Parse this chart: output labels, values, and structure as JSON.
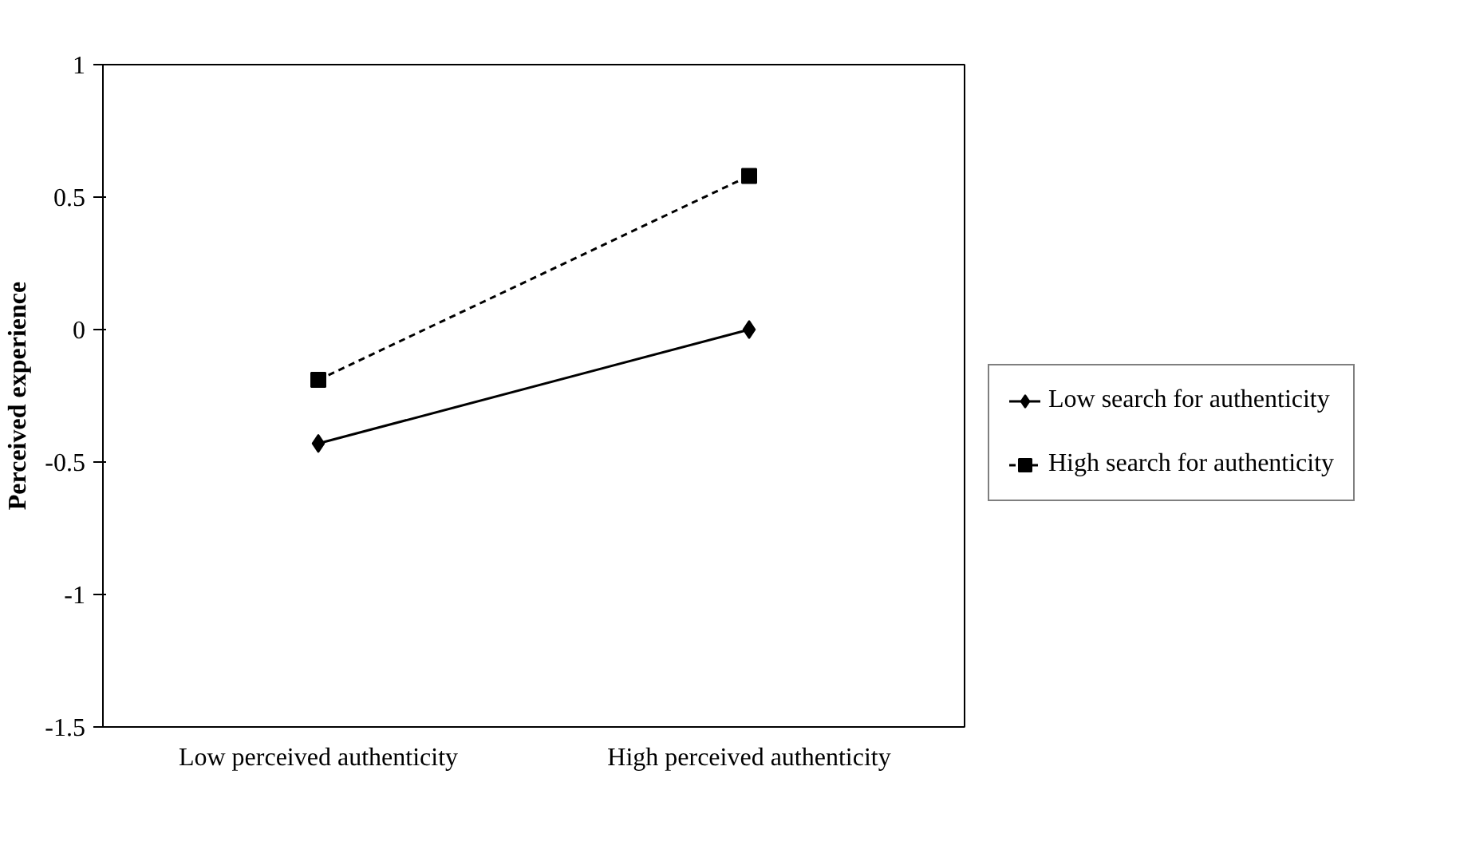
{
  "chart_data": {
    "type": "line",
    "ylabel": "Perceived experience",
    "categories": [
      "Low perceived authenticity",
      "High perceived authenticity"
    ],
    "series": [
      {
        "name": "Low search for authenticity",
        "color": "#000000",
        "values": [
          -0.43,
          0.0
        ],
        "marker": "diamond",
        "line_style": "solid"
      },
      {
        "name": "High search for authenticity",
        "color": "#000000",
        "values": [
          -0.19,
          0.58
        ],
        "marker": "square",
        "line_style": "dashed"
      }
    ],
    "ylim": [
      -1.5,
      1
    ],
    "yticks": [
      -1.5,
      -1,
      -0.5,
      0,
      0.5,
      1
    ],
    "grid": false,
    "legend": "right"
  }
}
